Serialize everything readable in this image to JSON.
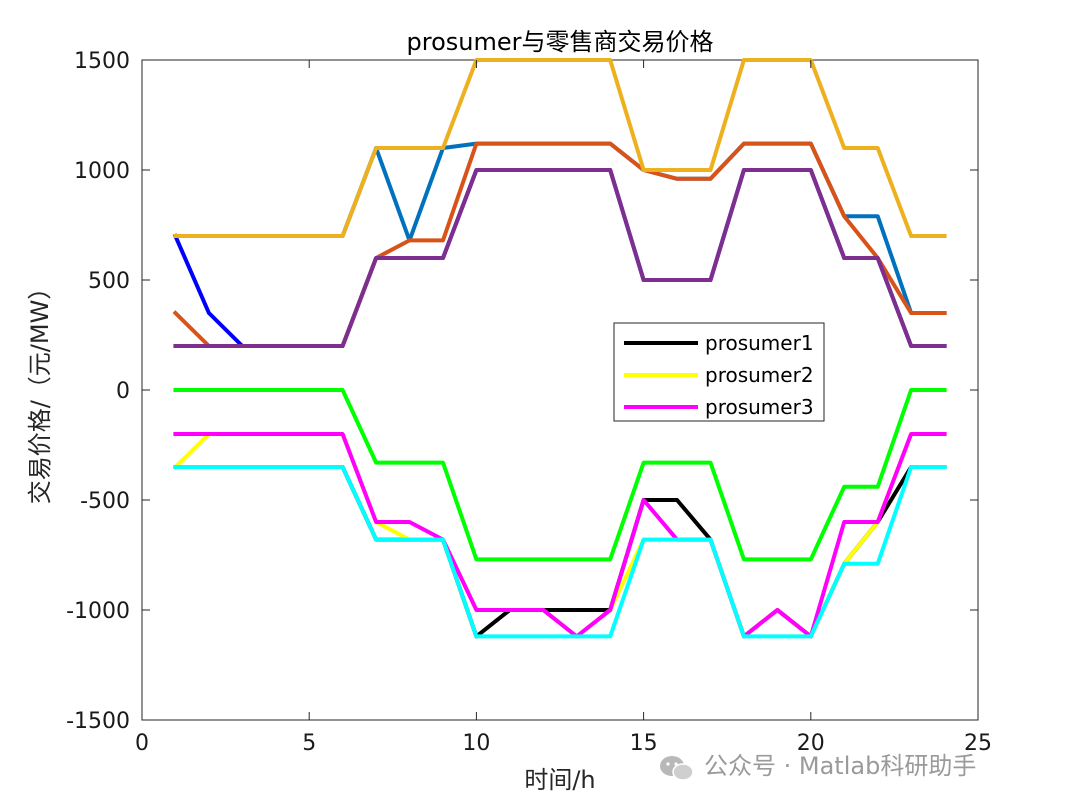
{
  "chart_data": {
    "type": "line",
    "title": "prosumer与零售商交易价格",
    "xlabel": "时间/h",
    "ylabel": "交易价格/（元/MW）",
    "xlim": [
      0,
      25
    ],
    "ylim": [
      -1500,
      1500
    ],
    "xticks": [
      0,
      5,
      10,
      15,
      20,
      25
    ],
    "yticks": [
      1500,
      1000,
      500,
      0,
      -500,
      -1000,
      -1500
    ],
    "grid": false,
    "legend_position": "center-right",
    "legend_entries": [
      "prosumer1",
      "prosumer2",
      "prosumer3"
    ],
    "x": [
      1,
      2,
      3,
      4,
      5,
      6,
      7,
      8,
      9,
      10,
      11,
      12,
      13,
      14,
      15,
      16,
      17,
      18,
      19,
      20,
      21,
      22,
      23,
      24
    ],
    "series": [
      {
        "name": "prosumer1",
        "color": "#000000",
        "values": [
          -350,
          -350,
          -350,
          -350,
          -350,
          -350,
          -680,
          -680,
          -680,
          -1120,
          -1000,
          -1000,
          -1000,
          -1000,
          -500,
          -500,
          -680,
          -1120,
          -1000,
          -1120,
          -790,
          -600,
          -350,
          -350
        ]
      },
      {
        "name": "prosumer2",
        "color": "#ffff00",
        "values": [
          -350,
          -200,
          -200,
          -200,
          -200,
          -200,
          -600,
          -680,
          -680,
          -1000,
          -1000,
          -1000,
          -1120,
          -1000,
          -680,
          -680,
          -680,
          -1120,
          -1000,
          -1120,
          -790,
          -600,
          -200,
          -200
        ]
      },
      {
        "name": "prosumer3",
        "color": "#ff00ff",
        "values": [
          -200,
          -200,
          -200,
          -200,
          -200,
          -200,
          -600,
          -600,
          -680,
          -1000,
          -1000,
          -1000,
          -1120,
          -1000,
          -500,
          -680,
          -680,
          -1120,
          -1000,
          -1120,
          -600,
          -600,
          -200,
          -200
        ]
      },
      {
        "color": "#00ffff",
        "values": [
          -350,
          -350,
          -350,
          -350,
          -350,
          -350,
          -680,
          -680,
          -680,
          -1120,
          -1120,
          -1120,
          -1120,
          -1120,
          -680,
          -680,
          -680,
          -1120,
          -1120,
          -1120,
          -790,
          -790,
          -350,
          -350
        ]
      },
      {
        "color": "#00ff00",
        "values": [
          0,
          0,
          0,
          0,
          0,
          0,
          -330,
          -330,
          -330,
          -770,
          -770,
          -770,
          -770,
          -770,
          -330,
          -330,
          -330,
          -770,
          -770,
          -770,
          -440,
          -440,
          0,
          0
        ]
      },
      {
        "color": "#0000ff",
        "values": [
          700,
          350,
          200,
          200,
          200,
          200,
          600,
          600,
          600,
          1000,
          1000,
          1000,
          1000,
          1000,
          500,
          500,
          500,
          1000,
          1000,
          1000,
          600,
          600,
          200,
          200
        ]
      },
      {
        "color": "#0072bd",
        "values": [
          700,
          700,
          700,
          700,
          700,
          700,
          1100,
          680,
          1100,
          1120,
          1120,
          1120,
          1120,
          1120,
          1000,
          960,
          960,
          1120,
          1120,
          1120,
          790,
          790,
          350,
          350
        ]
      },
      {
        "color": "#d95319",
        "values": [
          350,
          200,
          200,
          200,
          200,
          200,
          600,
          680,
          680,
          1120,
          1120,
          1120,
          1120,
          1120,
          1000,
          960,
          960,
          1120,
          1120,
          1120,
          790,
          600,
          350,
          350
        ]
      },
      {
        "color": "#edb120",
        "values": [
          700,
          700,
          700,
          700,
          700,
          700,
          1100,
          1100,
          1100,
          1500,
          1500,
          1500,
          1500,
          1500,
          1000,
          1000,
          1000,
          1500,
          1500,
          1500,
          1100,
          1100,
          700,
          700
        ]
      },
      {
        "color": "#7e2f8e",
        "values": [
          200,
          200,
          200,
          200,
          200,
          200,
          600,
          600,
          600,
          1000,
          1000,
          1000,
          1000,
          1000,
          500,
          500,
          500,
          1000,
          1000,
          1000,
          600,
          600,
          200,
          200
        ]
      }
    ]
  },
  "watermark": {
    "icon": "wechat-icon",
    "text": "公众号 · Matlab科研助手"
  }
}
